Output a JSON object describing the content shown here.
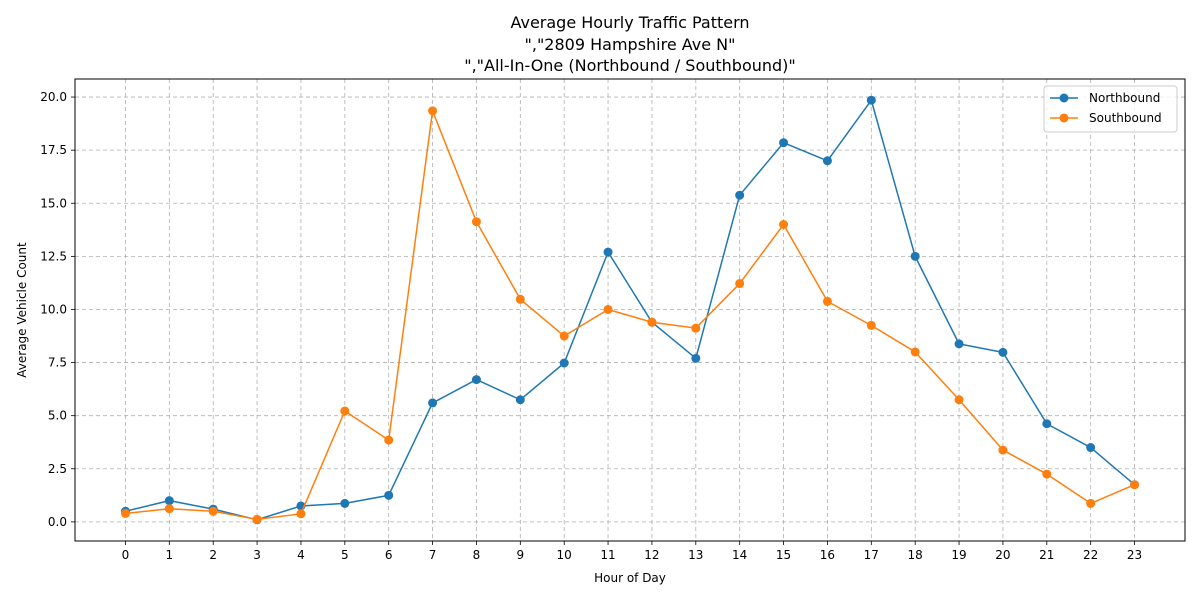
{
  "chart_data": {
    "type": "line",
    "title_lines": [
      "Average Hourly Traffic Pattern",
      "\",\"2809 Hampshire Ave N\"",
      "\",\"All-In-One (Northbound / Southbound)\""
    ],
    "xlabel": "Hour of Day",
    "ylabel": "Average Vehicle Count",
    "x": [
      0,
      1,
      2,
      3,
      4,
      5,
      6,
      7,
      8,
      9,
      10,
      11,
      12,
      13,
      14,
      15,
      16,
      17,
      18,
      19,
      20,
      21,
      22,
      23
    ],
    "xticks": [
      "0",
      "1",
      "2",
      "3",
      "4",
      "5",
      "6",
      "7",
      "8",
      "9",
      "10",
      "11",
      "12",
      "13",
      "14",
      "15",
      "16",
      "17",
      "18",
      "19",
      "20",
      "21",
      "22",
      "23"
    ],
    "yticks": [
      0.0,
      2.5,
      5.0,
      7.5,
      10.0,
      12.5,
      15.0,
      17.5,
      20.0
    ],
    "ytick_labels": [
      "0.0",
      "2.5",
      "5.0",
      "7.5",
      "10.0",
      "12.5",
      "15.0",
      "17.5",
      "20.0"
    ],
    "xlim": [
      -1.15,
      24.15
    ],
    "ylim": [
      -0.9,
      20.85
    ],
    "grid": true,
    "legend_position": "upper-right",
    "series": [
      {
        "name": "Northbound",
        "color": "#1f77b4",
        "values": [
          0.5,
          1.0,
          0.6,
          0.1,
          0.75,
          0.87,
          1.25,
          5.6,
          6.7,
          5.75,
          7.48,
          12.7,
          9.4,
          7.7,
          15.38,
          17.85,
          17.0,
          19.85,
          12.5,
          8.38,
          7.98,
          4.62,
          3.5,
          1.75
        ]
      },
      {
        "name": "Southbound",
        "color": "#ff7f0e",
        "values": [
          0.4,
          0.62,
          0.5,
          0.12,
          0.38,
          5.22,
          3.85,
          19.35,
          14.13,
          10.48,
          8.75,
          10.0,
          9.4,
          9.12,
          11.22,
          14.0,
          10.38,
          9.25,
          8.0,
          5.75,
          3.38,
          2.25,
          0.87,
          1.75
        ]
      }
    ]
  }
}
